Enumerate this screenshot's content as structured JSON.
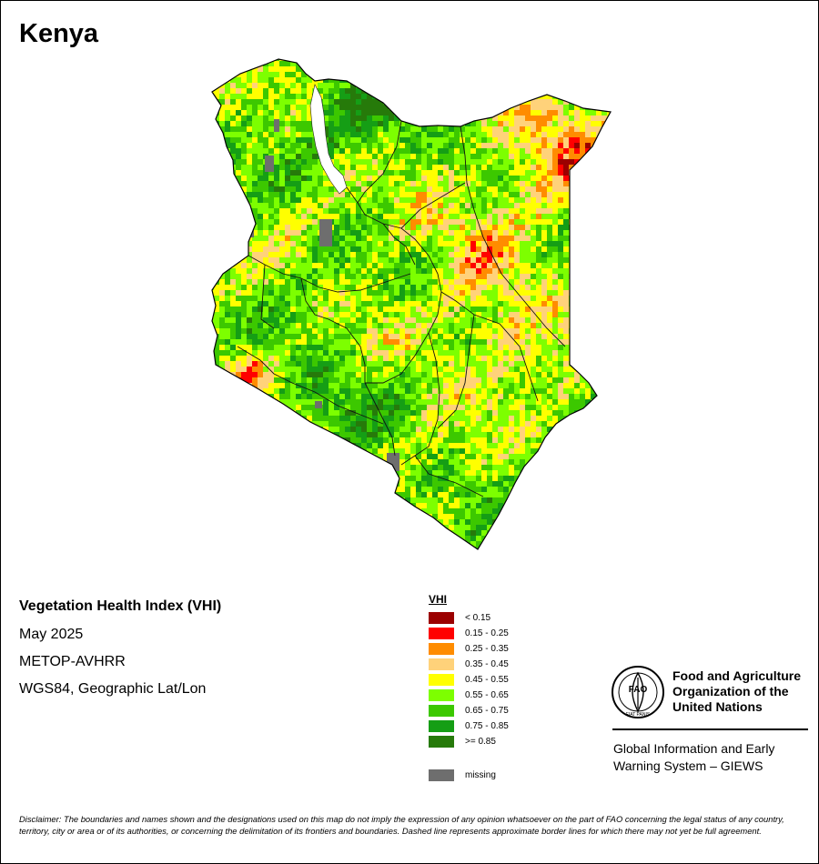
{
  "country": "Kenya",
  "info": {
    "title": "Vegetation Health Index (VHI)",
    "date": "May 2025",
    "sensor": "METOP-AVHRR",
    "projection": "WGS84, Geographic Lat/Lon"
  },
  "legend": {
    "title": "VHI",
    "classes": [
      {
        "label": "< 0.15",
        "color": "#9b0000"
      },
      {
        "label": "0.15 - 0.25",
        "color": "#ff0000"
      },
      {
        "label": "0.25 - 0.35",
        "color": "#ff8c00"
      },
      {
        "label": "0.35 - 0.45",
        "color": "#ffd27a"
      },
      {
        "label": "0.45 - 0.55",
        "color": "#ffff00"
      },
      {
        "label": "0.55 - 0.65",
        "color": "#7dff00"
      },
      {
        "label": "0.65 - 0.75",
        "color": "#3cc800"
      },
      {
        "label": "0.75 - 0.85",
        "color": "#159e15"
      },
      {
        "label": ">= 0.85",
        "color": "#267a0a"
      },
      {
        "label": "missing",
        "color": "#6e6e6e"
      }
    ]
  },
  "fao": {
    "name_lines": [
      "Food and Agriculture",
      "Organization of the",
      "United Nations"
    ],
    "logo_text": "FAO",
    "logo_motto": "FIAT PANIS",
    "giews_lines": [
      "Global Information and Early",
      "Warning System – GIEWS"
    ]
  },
  "disclaimer": "Disclaimer: The boundaries and names shown and the designations used on this map do not imply the expression of any opinion whatsoever on the part of FAO concerning the legal status of any country, territory, city or area or of its authorities, or concerning the delimitation of its frontiers and boundaries. Dashed line represents approximate border lines for which there may not yet be full agreement."
}
